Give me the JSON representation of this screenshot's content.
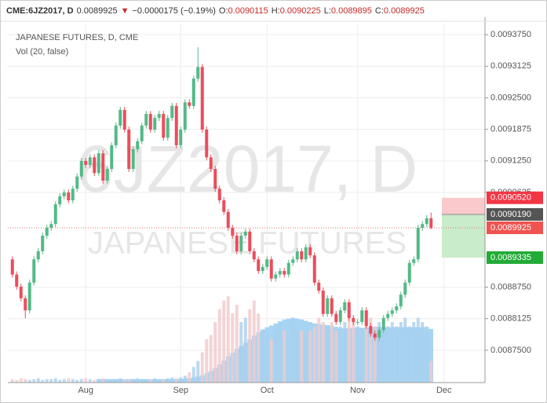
{
  "header": {
    "symbol": "CME:6JZ2017, D",
    "last": "0.0089925",
    "change": "−0.0000175 (−0.19%)",
    "ohlc": [
      {
        "label": "O:",
        "value": "0.0090115"
      },
      {
        "label": "H:",
        "value": "0.0090225"
      },
      {
        "label": "L:",
        "value": "0.0089895"
      },
      {
        "label": "C:",
        "value": "0.0089925"
      }
    ]
  },
  "chart_data": {
    "type": "candlestick",
    "legend": [
      "JAPANESE FUTURES, D, CME",
      "Vol (20, false)"
    ],
    "watermark": [
      "6JZ2017, D",
      "JAPANESE FUTURES"
    ],
    "categories": [
      null,
      null,
      null,
      null,
      null,
      null,
      null,
      null,
      null,
      null,
      null,
      null,
      null,
      null,
      null,
      null,
      null,
      "Aug",
      null,
      null,
      null,
      null,
      null,
      null,
      null,
      null,
      null,
      null,
      null,
      null,
      null,
      null,
      null,
      null,
      null,
      null,
      null,
      null,
      null,
      "Sep",
      null,
      null,
      null,
      null,
      null,
      null,
      null,
      null,
      null,
      null,
      null,
      null,
      null,
      null,
      null,
      null,
      null,
      null,
      null,
      "Oct",
      null,
      null,
      null,
      null,
      null,
      null,
      null,
      null,
      null,
      null,
      null,
      null,
      null,
      null,
      null,
      null,
      null,
      null,
      null,
      null,
      "Nov",
      null,
      null,
      null,
      null,
      null,
      null,
      null,
      null,
      null,
      null,
      null,
      null,
      null,
      null,
      null,
      null,
      null,
      null,
      null,
      "Dec"
    ],
    "open": [
      0.00893,
      0.0089,
      0.008876,
      0.008853,
      0.008829,
      0.008884,
      0.00893,
      0.008946,
      0.008977,
      0.0089925,
      0.009,
      0.009039,
      0.009055,
      0.0090625,
      0.009047,
      0.00907,
      0.009094,
      0.009125,
      0.009117,
      0.009132,
      0.009101,
      0.00914,
      0.009086,
      0.009109,
      0.009156,
      0.009195,
      0.009226,
      0.009187,
      0.009109,
      0.009148,
      0.009164,
      0.009195,
      0.009218,
      0.009187,
      0.00921,
      0.009218,
      0.009171,
      0.00921,
      0.009234,
      0.009156,
      0.009187,
      0.009241,
      0.009234,
      0.009288,
      0.009311,
      0.009187,
      0.009132,
      0.009109,
      0.00907,
      0.009047,
      0.009024,
      0.0089925,
      0.008977,
      0.008946,
      0.008977,
      0.008985,
      0.008946,
      0.00893,
      0.008907,
      0.008915,
      0.00893,
      0.008892,
      0.0089,
      0.008907,
      0.0089,
      0.008923,
      0.00893,
      0.008946,
      0.00893,
      0.008954,
      0.008938,
      0.008884,
      0.008868,
      0.008822,
      0.008853,
      0.008822,
      0.008806,
      0.008829,
      0.008845,
      0.008814,
      0.008806,
      0.008806,
      0.008829,
      0.008798,
      0.008783,
      0.008775,
      0.00879,
      0.008814,
      0.008822,
      0.008829,
      0.008837,
      0.00886,
      0.008884,
      0.008923,
      0.00893,
      0.0089925,
      0.009,
      0.0090115,
      null,
      null,
      null
    ],
    "high": [
      0.008936,
      0.008906,
      0.008882,
      0.008859,
      0.00889,
      0.008936,
      0.008952,
      0.008983,
      0.0089985,
      0.009006,
      0.009045,
      0.009061,
      0.0090685,
      0.0090685,
      0.009076,
      0.0091,
      0.009131,
      0.009131,
      0.009138,
      0.009138,
      0.009146,
      0.009146,
      0.009115,
      0.009162,
      0.009201,
      0.009232,
      0.009232,
      0.009193,
      0.009154,
      0.00917,
      0.009201,
      0.009224,
      0.009224,
      0.009216,
      0.009224,
      0.009224,
      0.009216,
      0.00924,
      0.00924,
      0.009193,
      0.009247,
      0.009247,
      0.009294,
      0.00935,
      0.009317,
      0.009193,
      0.009138,
      0.009115,
      0.009076,
      0.009053,
      0.00903,
      0.0089985,
      0.008983,
      0.008983,
      0.008991,
      0.008991,
      0.008952,
      0.008936,
      0.008921,
      0.008936,
      0.008936,
      0.008906,
      0.008913,
      0.008913,
      0.008929,
      0.008936,
      0.008952,
      0.008952,
      0.00896,
      0.00896,
      0.008944,
      0.00889,
      0.008874,
      0.008859,
      0.008859,
      0.008828,
      0.008835,
      0.008851,
      0.008851,
      0.00882,
      0.008812,
      0.008835,
      0.008835,
      0.008804,
      0.008789,
      0.008796,
      0.00882,
      0.008828,
      0.008835,
      0.008843,
      0.008866,
      0.00889,
      0.008929,
      0.008936,
      0.0089985,
      0.009006,
      0.0090175,
      0.0090225,
      null,
      null,
      null
    ],
    "low": [
      0.008894,
      0.00887,
      0.008847,
      0.008813,
      0.008823,
      0.008878,
      0.008924,
      0.00894,
      0.008971,
      0.0089865,
      0.008994,
      0.009033,
      0.009049,
      0.009041,
      0.009041,
      0.009064,
      0.009088,
      0.009111,
      0.009111,
      0.009095,
      0.009095,
      0.00908,
      0.00908,
      0.009103,
      0.00915,
      0.009189,
      0.009181,
      0.009103,
      0.009103,
      0.009142,
      0.009158,
      0.009189,
      0.009181,
      0.009181,
      0.009204,
      0.009165,
      0.009165,
      0.009204,
      0.00915,
      0.00915,
      0.009181,
      0.009228,
      0.009228,
      0.009282,
      0.009181,
      0.009126,
      0.009103,
      0.009064,
      0.009041,
      0.009018,
      0.0089865,
      0.008971,
      0.00894,
      0.00894,
      0.008971,
      0.00894,
      0.008924,
      0.008901,
      0.008901,
      0.008909,
      0.008886,
      0.008886,
      0.008894,
      0.008894,
      0.008894,
      0.008917,
      0.008924,
      0.008924,
      0.008924,
      0.008932,
      0.008878,
      0.008862,
      0.008816,
      0.008816,
      0.008816,
      0.0088,
      0.0088,
      0.008823,
      0.008808,
      0.0088,
      0.0088,
      0.0088,
      0.008792,
      0.008777,
      0.008769,
      0.008769,
      0.008784,
      0.008808,
      0.008816,
      0.008823,
      0.008831,
      0.008854,
      0.008878,
      0.008917,
      0.008924,
      0.0089865,
      0.008994,
      0.0089895,
      null,
      null,
      null
    ],
    "close": [
      0.0089,
      0.008876,
      0.008853,
      0.008829,
      0.008884,
      0.00893,
      0.008946,
      0.008977,
      0.0089925,
      0.009,
      0.009039,
      0.009055,
      0.0090625,
      0.009047,
      0.00907,
      0.009094,
      0.009125,
      0.009117,
      0.009132,
      0.009101,
      0.00914,
      0.009086,
      0.009109,
      0.009156,
      0.009195,
      0.009226,
      0.009187,
      0.009109,
      0.009148,
      0.009164,
      0.009195,
      0.009218,
      0.009187,
      0.00921,
      0.009218,
      0.009171,
      0.00921,
      0.009234,
      0.009156,
      0.009187,
      0.009241,
      0.009234,
      0.009288,
      0.009311,
      0.009187,
      0.009132,
      0.009109,
      0.00907,
      0.009047,
      0.009024,
      0.0089925,
      0.008977,
      0.008946,
      0.008977,
      0.008985,
      0.008946,
      0.00893,
      0.008907,
      0.008915,
      0.00893,
      0.008892,
      0.0089,
      0.008907,
      0.0089,
      0.008923,
      0.00893,
      0.008946,
      0.00893,
      0.008954,
      0.008938,
      0.008884,
      0.008868,
      0.008822,
      0.008853,
      0.008822,
      0.008806,
      0.008829,
      0.008845,
      0.008814,
      0.008806,
      0.008806,
      0.008829,
      0.008798,
      0.008783,
      0.008775,
      0.00879,
      0.008814,
      0.008822,
      0.008829,
      0.008837,
      0.00886,
      0.008884,
      0.008923,
      0.00893,
      0.0089925,
      0.009,
      0.0090115,
      0.0089925,
      null,
      null,
      null
    ],
    "volume": [
      4,
      3,
      5,
      4,
      3,
      4,
      5,
      3,
      4,
      4,
      5,
      3,
      4,
      5,
      4,
      3,
      4,
      5,
      4,
      3,
      4,
      5,
      4,
      3,
      4,
      5,
      4,
      3,
      4,
      5,
      4,
      3,
      4,
      5,
      4,
      3,
      5,
      6,
      5,
      6,
      8,
      12,
      18,
      25,
      35,
      50,
      55,
      70,
      85,
      95,
      100,
      80,
      90,
      70,
      75,
      85,
      95,
      80,
      60,
      55,
      50,
      65,
      70,
      60,
      55,
      70,
      65,
      60,
      55,
      60,
      65,
      75,
      70,
      65,
      70,
      60,
      65,
      70,
      75,
      70,
      65,
      60,
      70,
      75,
      65,
      70,
      60,
      65,
      70,
      65,
      70,
      75,
      65,
      70,
      75,
      70,
      65,
      25,
      null,
      null,
      null
    ],
    "volume_ma": [
      null,
      null,
      null,
      null,
      null,
      null,
      null,
      null,
      null,
      null,
      null,
      null,
      null,
      null,
      null,
      null,
      null,
      null,
      null,
      null,
      4,
      4,
      4,
      4,
      4,
      4,
      4,
      4,
      4,
      4,
      4,
      4,
      4,
      4,
      4,
      4,
      4,
      4,
      4,
      4,
      4.5,
      5,
      6,
      7,
      8.5,
      11,
      13.5,
      17,
      21,
      25.5,
      30.5,
      34.5,
      39,
      42.5,
      46,
      50,
      54.5,
      58.5,
      61.5,
      64,
      66,
      68.5,
      71,
      73,
      74,
      75,
      74,
      73,
      71.5,
      70,
      68.5,
      68,
      67,
      66.5,
      66,
      64.5,
      63,
      62.5,
      63,
      63.5,
      64,
      63.5,
      63.5,
      64,
      64.5,
      64.5,
      64,
      64,
      64,
      64,
      64,
      64.5,
      64,
      64,
      64,
      64,
      64,
      62,
      null,
      null,
      null
    ],
    "up_color": "#53b987",
    "down_color": "#eb4d5c",
    "volume_up_color": "#a9cfee",
    "volume_down_color": "#f1c9cc",
    "volume_ma_color": "#a6d4f2",
    "ylim": [
      0.008686,
      0.009397
    ],
    "yticks": [
      {
        "value": 0.009375,
        "label": "0.0093750"
      },
      {
        "value": 0.0093125,
        "label": "0.0093125"
      },
      {
        "value": 0.00925,
        "label": "0.0092500"
      },
      {
        "value": 0.0091875,
        "label": "0.0091875"
      },
      {
        "value": 0.009125,
        "label": "0.0091250"
      },
      {
        "value": 0.0090625,
        "label": "0.0090625"
      },
      {
        "value": 0.008875,
        "label": "0.0088750"
      },
      {
        "value": 0.0088125,
        "label": "0.0088125"
      },
      {
        "value": 0.00875,
        "label": "0.0087500"
      }
    ],
    "price_labels": [
      {
        "value": 0.009052,
        "label": "0.0090520",
        "color": "#f23645"
      },
      {
        "value": 0.009019,
        "label": "0.0090190",
        "color": "#555555"
      },
      {
        "value": 0.0089925,
        "label": "0.0089925",
        "color": "#ef5350"
      },
      {
        "value": 0.0089335,
        "label": "0.0089335",
        "color": "#22ab36"
      }
    ],
    "grid": true
  }
}
